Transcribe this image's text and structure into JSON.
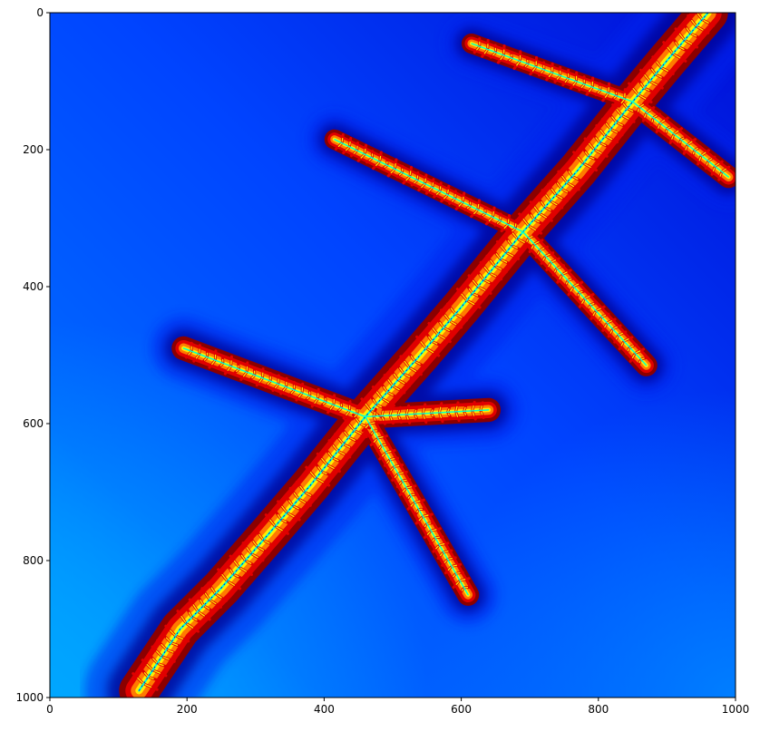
{
  "chart_data": {
    "type": "heatmap",
    "title": "",
    "xlabel": "",
    "ylabel": "",
    "xlim": [
      0,
      1000
    ],
    "ylim": [
      1000,
      0
    ],
    "x_ticks": [
      0,
      200,
      400,
      600,
      800,
      1000
    ],
    "y_ticks": [
      0,
      200,
      400,
      600,
      800,
      1000
    ],
    "x_tick_labels": [
      "0",
      "200",
      "400",
      "600",
      "800",
      "1000"
    ],
    "y_tick_labels": [
      "0",
      "200",
      "400",
      "600",
      "800",
      "1000"
    ],
    "grid": false,
    "legend": "none",
    "colormap": "jet",
    "colors": {
      "background_far": "#00a6ff",
      "background_mid": "#0066ff",
      "background_near": "#0022ee",
      "halo_dark": "#00008f",
      "outer": "#8b0000",
      "mid": "#e00000",
      "inner": "#ff7a00",
      "core": "#ffee00",
      "spine": "#00ffd0"
    },
    "fractal_spine": [
      [
        130,
        990
      ],
      [
        190,
        900
      ],
      [
        250,
        840
      ],
      [
        320,
        760
      ],
      [
        380,
        690
      ],
      [
        460,
        590
      ],
      [
        540,
        500
      ],
      [
        600,
        430
      ],
      [
        690,
        320
      ],
      [
        770,
        230
      ],
      [
        850,
        130
      ],
      [
        900,
        70
      ],
      [
        960,
        0
      ]
    ],
    "fractal_branches": [
      [
        [
          460,
          590
        ],
        [
          195,
          490
        ]
      ],
      [
        [
          460,
          590
        ],
        [
          640,
          580
        ]
      ],
      [
        [
          460,
          590
        ],
        [
          610,
          850
        ]
      ],
      [
        [
          690,
          320
        ],
        [
          415,
          185
        ]
      ],
      [
        [
          690,
          320
        ],
        [
          870,
          515
        ]
      ],
      [
        [
          850,
          130
        ],
        [
          615,
          45
        ]
      ],
      [
        [
          850,
          130
        ],
        [
          990,
          240
        ]
      ]
    ]
  }
}
